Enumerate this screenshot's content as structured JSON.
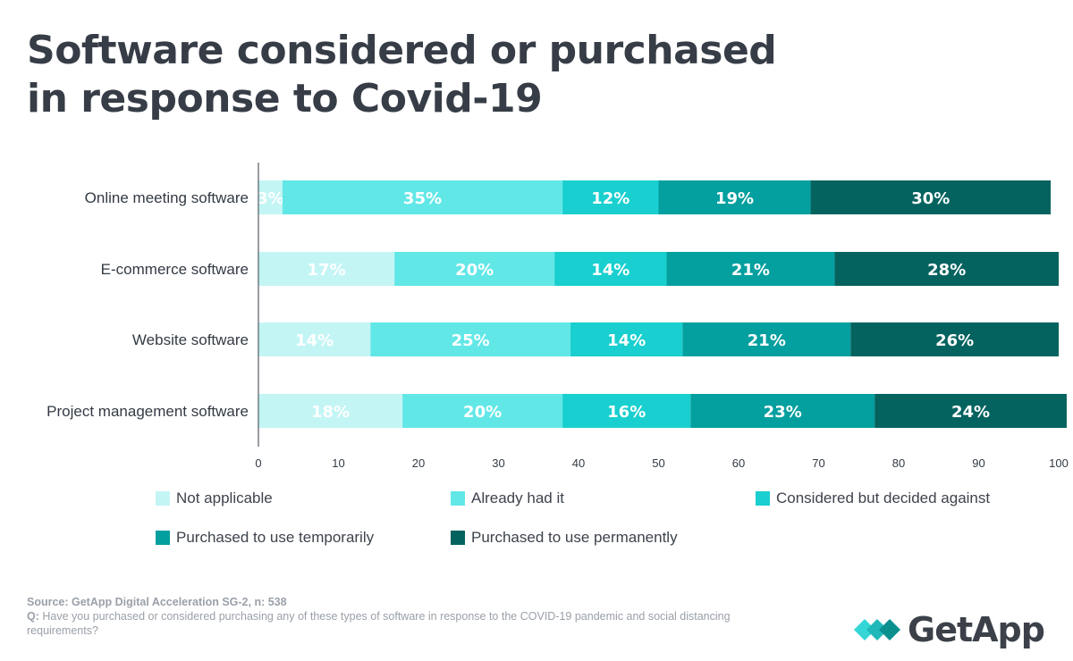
{
  "title_lines": [
    "Software considered or purchased",
    "in response to Covid-19"
  ],
  "colors": {
    "not_applicable": "#c4f5f5",
    "already_had": "#62e7e7",
    "considered": "#19cfcf",
    "temporary": "#049f9f",
    "permanent": "#05635f",
    "axis": "#555b63",
    "text": "#333a44"
  },
  "chart_data": {
    "type": "bar",
    "orientation": "horizontal",
    "stacked": true,
    "categories": [
      "Online meeting software",
      "E-commerce software",
      "Website software",
      "Project management software"
    ],
    "series": [
      {
        "name": "Not applicable",
        "color": "#c4f5f5",
        "values": [
          3,
          17,
          14,
          18
        ]
      },
      {
        "name": "Already had it",
        "color": "#62e7e7",
        "values": [
          35,
          20,
          25,
          20
        ]
      },
      {
        "name": "Considered but decided against",
        "color": "#19cfcf",
        "values": [
          12,
          14,
          14,
          16
        ]
      },
      {
        "name": "Purchased to use temporarily",
        "color": "#049f9f",
        "values": [
          19,
          21,
          21,
          23
        ]
      },
      {
        "name": "Purchased to use permanently",
        "color": "#05635f",
        "values": [
          30,
          28,
          26,
          24
        ]
      }
    ],
    "xlim": [
      0,
      100
    ],
    "xticks": [
      0,
      10,
      20,
      30,
      40,
      50,
      60,
      70,
      80,
      90,
      100
    ],
    "label_suffix": "%",
    "legend_position": "bottom"
  },
  "footer": {
    "source": "Source: GetApp Digital Acceleration SG-2, n: 538",
    "q_label": "Q:",
    "question": " Have you purchased or considered purchasing any of these types of software in response to the COVID-19 pandemic and social distancing requirements?"
  },
  "logo": {
    "text": "GetApp",
    "icon": "getapp-chevrons-icon"
  }
}
